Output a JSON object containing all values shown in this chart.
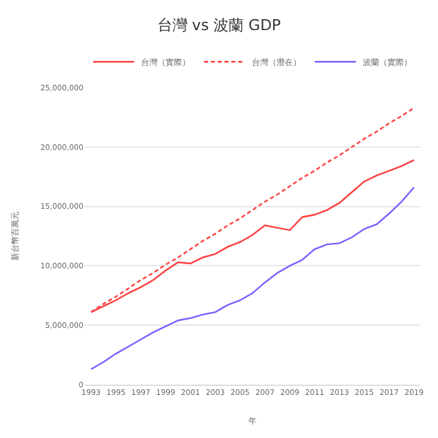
{
  "chart_data": {
    "type": "line",
    "title": "台灣 vs 波蘭 GDP",
    "xlabel": "年",
    "ylabel": "新台幣百萬元",
    "x": [
      1993,
      1994,
      1995,
      1996,
      1997,
      1998,
      1999,
      2000,
      2001,
      2002,
      2003,
      2004,
      2005,
      2006,
      2007,
      2008,
      2009,
      2010,
      2011,
      2012,
      2013,
      2014,
      2015,
      2016,
      2017,
      2018,
      2019
    ],
    "series": [
      {
        "name": "台灣（實際）",
        "color": "#ff4040",
        "line_style": "solid",
        "values": [
          6100000,
          6600000,
          7100000,
          7700000,
          8200000,
          8800000,
          9600000,
          10300000,
          10200000,
          10700000,
          11000000,
          11600000,
          12000000,
          12600000,
          13400000,
          13200000,
          13000000,
          14100000,
          14300000,
          14700000,
          15300000,
          16200000,
          17100000,
          17600000,
          18000000,
          18400000,
          18900000
        ]
      },
      {
        "name": "台灣（潛在）",
        "color": "#ff4040",
        "line_style": "dashed",
        "values": [
          6100000,
          6800000,
          7400000,
          8100000,
          8800000,
          9400000,
          10100000,
          10700000,
          11400000,
          12100000,
          12700000,
          13400000,
          14000000,
          14700000,
          15400000,
          16000000,
          16700000,
          17400000,
          18000000,
          18700000,
          19300000,
          20000000,
          20700000,
          21300000,
          22000000,
          22600000,
          23300000
        ]
      },
      {
        "name": "波蘭（實際）",
        "color": "#7f5fff",
        "line_style": "solid",
        "values": [
          1300000,
          1900000,
          2600000,
          3200000,
          3800000,
          4400000,
          4900000,
          5400000,
          5600000,
          5900000,
          6100000,
          6700000,
          7100000,
          7700000,
          8600000,
          9400000,
          10000000,
          10500000,
          11400000,
          11800000,
          11900000,
          12400000,
          13100000,
          13500000,
          14400000,
          15400000,
          16600000
        ]
      }
    ],
    "xlim": [
      1992.5,
      2019.5
    ],
    "xticks": [
      1993,
      1995,
      1997,
      1999,
      2001,
      2003,
      2005,
      2007,
      2009,
      2011,
      2013,
      2015,
      2017,
      2019
    ],
    "ylim": [
      0,
      25000000
    ],
    "yticks": [
      {
        "value": 0,
        "label": "0"
      },
      {
        "value": 5000000,
        "label": "5,000,000"
      },
      {
        "value": 10000000,
        "label": "10,000,000"
      },
      {
        "value": 15000000,
        "label": "15,000,000"
      },
      {
        "value": 20000000,
        "label": "20,000,000"
      },
      {
        "value": 25000000,
        "label": "25,000,000"
      }
    ],
    "grid": "y",
    "legend": "top",
    "marker": "none"
  }
}
